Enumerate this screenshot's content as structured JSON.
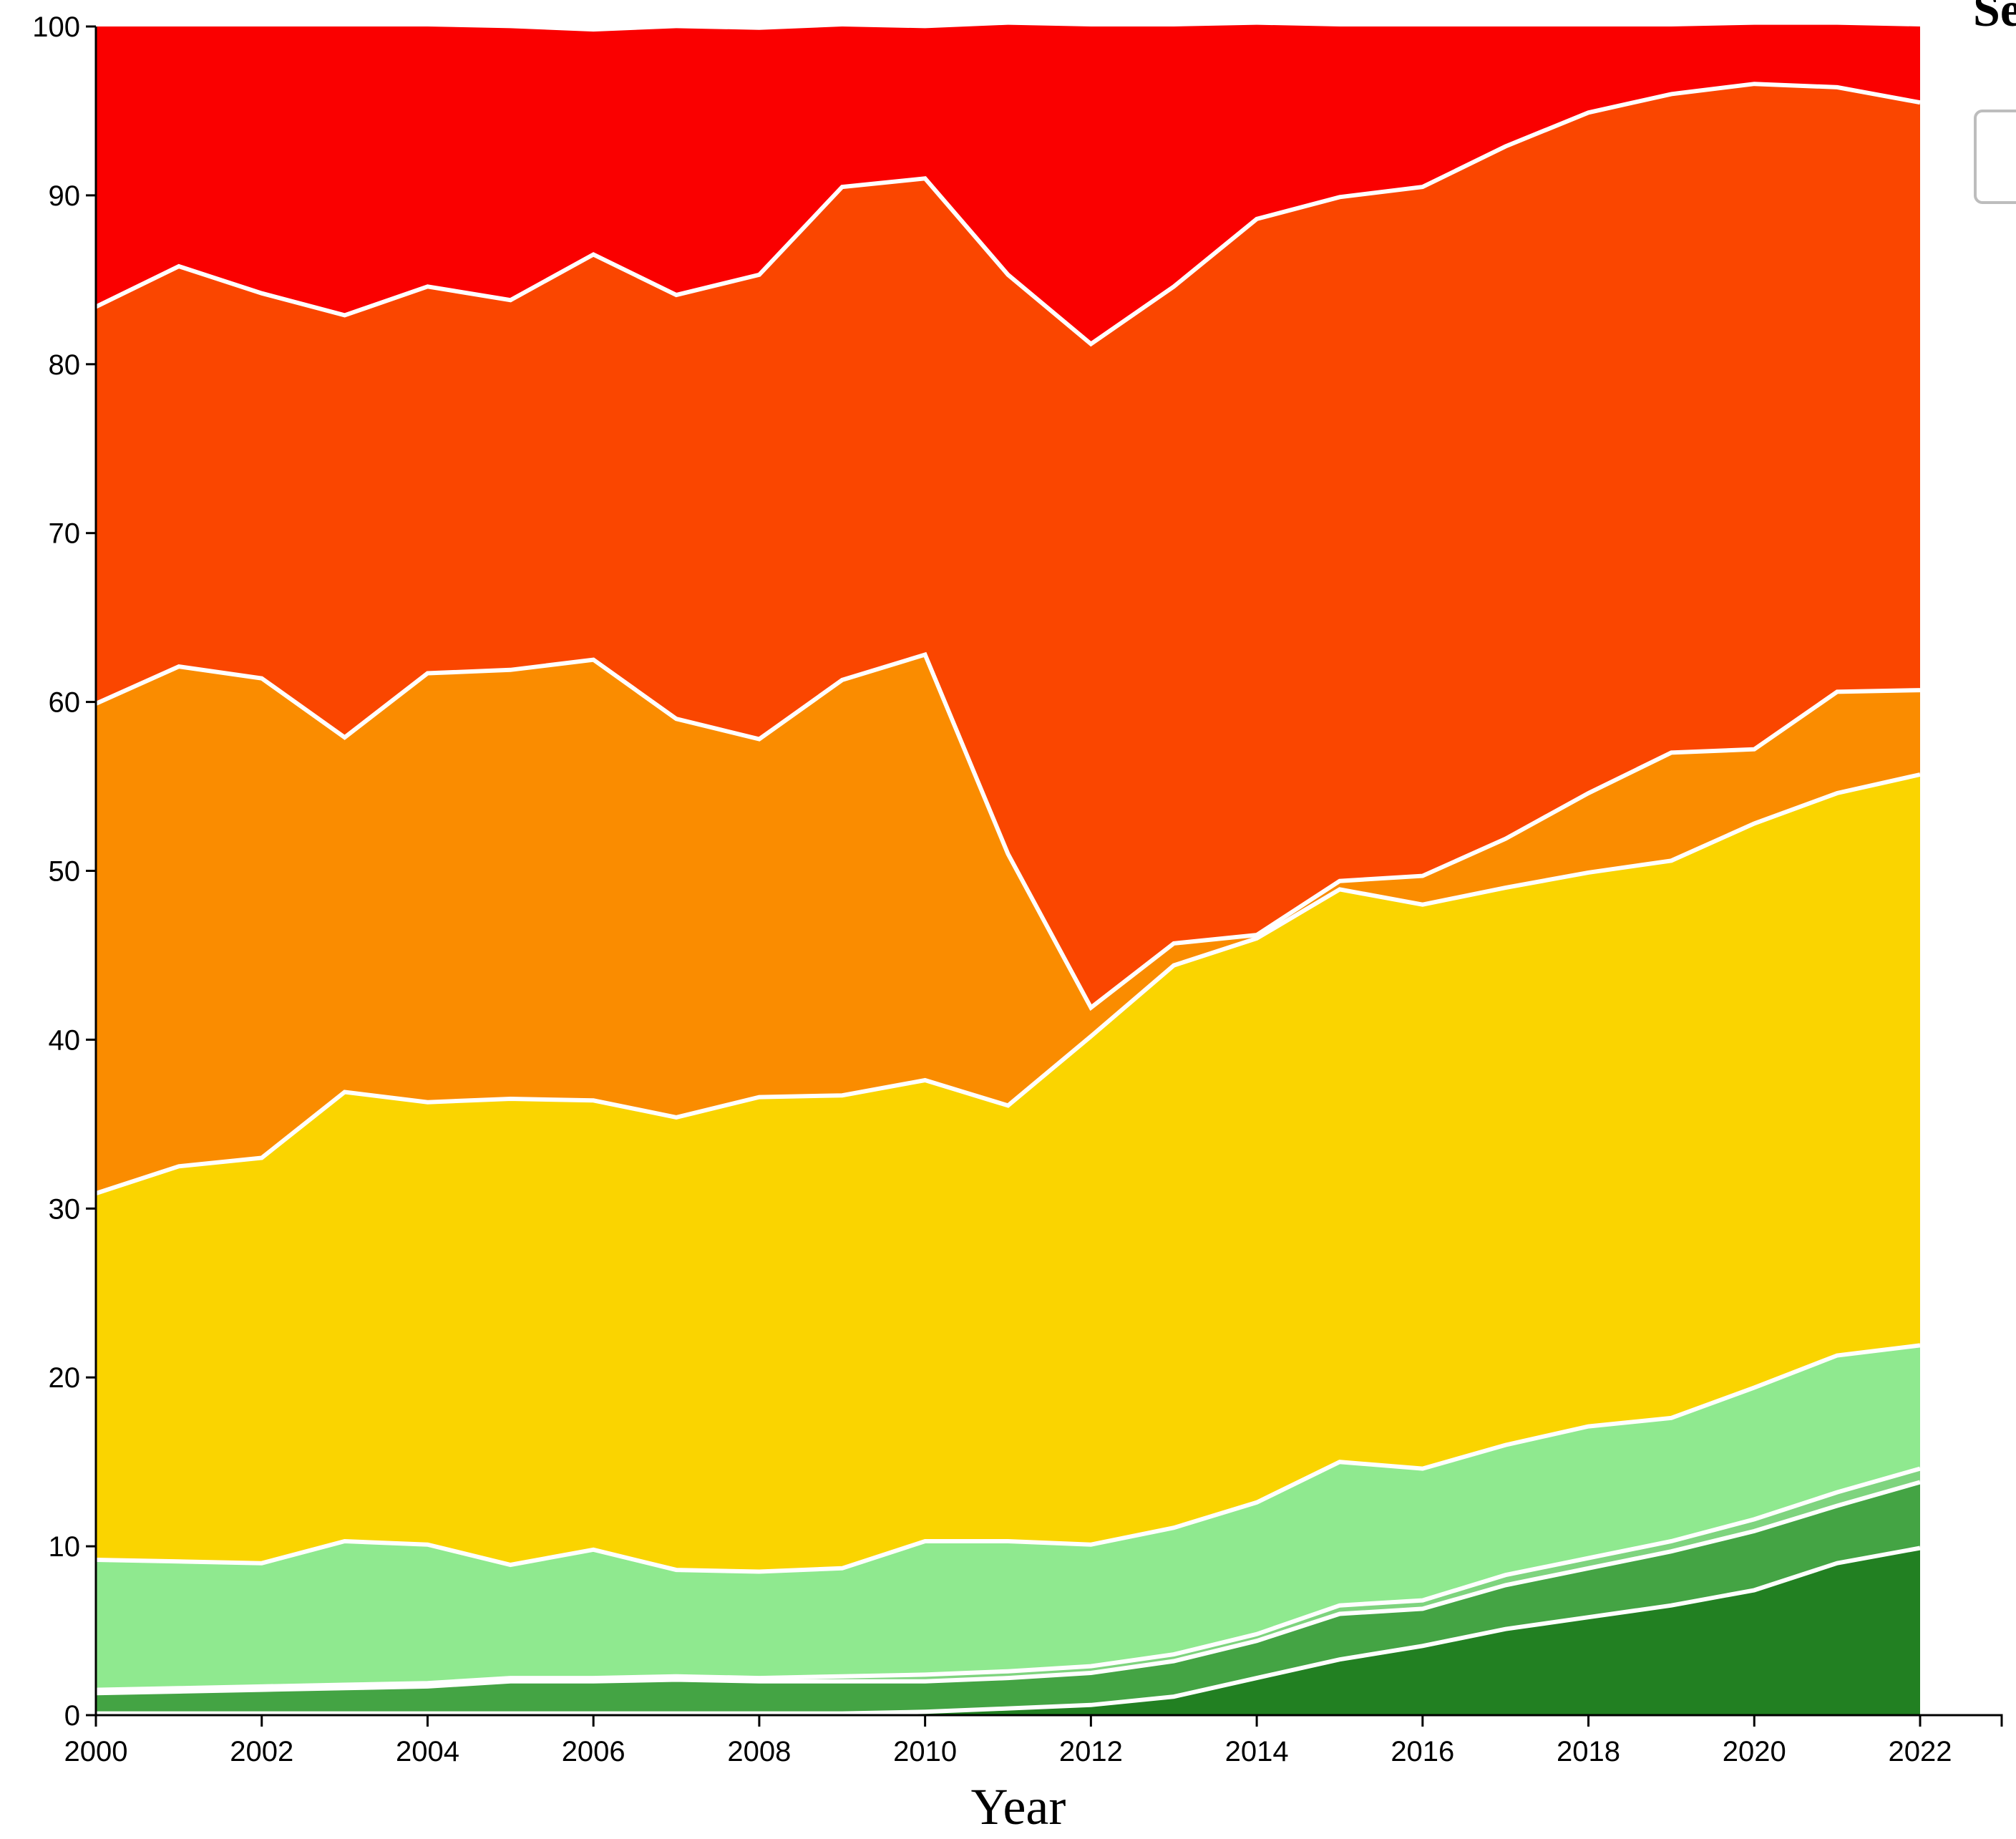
{
  "chart_data": {
    "type": "area",
    "stacked": true,
    "x": [
      2000,
      2001,
      2002,
      2003,
      2004,
      2005,
      2006,
      2007,
      2008,
      2009,
      2010,
      2011,
      2012,
      2013,
      2014,
      2015,
      2016,
      2017,
      2018,
      2019,
      2020,
      2021,
      2022
    ],
    "xlabel": "Year",
    "ylabel": "",
    "ylim": [
      0,
      100
    ],
    "xlim": [
      2000,
      2022
    ],
    "x_ticks": [
      "2000",
      "2002",
      "2004",
      "2006",
      "2008",
      "2010",
      "2012",
      "2014",
      "2016",
      "2018",
      "2020",
      "2022"
    ],
    "y_ticks": [
      "0",
      "10",
      "20",
      "30",
      "40",
      "50",
      "60",
      "70",
      "80",
      "90",
      "100"
    ],
    "legend_title": "Se",
    "legend_placement": "right",
    "grid": false,
    "series": [
      {
        "color": "#228022",
        "values": [
          0.1,
          0.1,
          0.1,
          0.1,
          0.1,
          0.1,
          0.1,
          0.1,
          0.1,
          0.1,
          0.2,
          0.4,
          0.6,
          1.1,
          2.2,
          3.3,
          4.1,
          5.1,
          5.8,
          6.5,
          7.4,
          9.0,
          9.9
        ]
      },
      {
        "color": "#44a444",
        "values": [
          1.2,
          1.3,
          1.4,
          1.5,
          1.6,
          1.9,
          1.9,
          2.0,
          1.9,
          1.9,
          1.8,
          1.8,
          1.9,
          2.1,
          2.2,
          2.7,
          2.2,
          2.6,
          2.9,
          3.2,
          3.5,
          3.4,
          3.9
        ]
      },
      {
        "color": "#7fd47f",
        "values": [
          0.2,
          0.2,
          0.2,
          0.2,
          0.2,
          0.2,
          0.2,
          0.2,
          0.2,
          0.3,
          0.4,
          0.4,
          0.4,
          0.4,
          0.4,
          0.5,
          0.5,
          0.6,
          0.6,
          0.6,
          0.7,
          0.8,
          0.8
        ]
      },
      {
        "color": "#8fe98f",
        "values": [
          7.7,
          7.5,
          7.3,
          8.5,
          8.2,
          6.7,
          7.6,
          6.3,
          6.3,
          6.4,
          7.9,
          7.7,
          7.2,
          7.5,
          7.8,
          8.5,
          7.8,
          7.7,
          7.8,
          7.3,
          7.8,
          8.1,
          7.3
        ]
      },
      {
        "color": "#fad400",
        "values": [
          21.7,
          23.4,
          24.0,
          26.6,
          26.2,
          27.6,
          26.6,
          26.8,
          28.1,
          28.0,
          27.3,
          25.8,
          30.1,
          33.3,
          33.4,
          33.9,
          33.4,
          33.0,
          32.8,
          33.0,
          33.4,
          33.3,
          33.8
        ]
      },
      {
        "color": "#fa8c00",
        "values": [
          29.0,
          29.6,
          28.4,
          21.0,
          25.4,
          25.4,
          26.1,
          23.6,
          21.2,
          24.6,
          25.2,
          14.9,
          1.7,
          1.3,
          0.2,
          0.5,
          1.7,
          2.9,
          4.7,
          6.4,
          4.4,
          6.0,
          5.0
        ]
      },
      {
        "color": "#fa4600",
        "values": [
          23.5,
          23.7,
          22.8,
          25.0,
          22.9,
          21.9,
          24.0,
          25.1,
          27.5,
          29.2,
          28.2,
          34.3,
          39.3,
          38.9,
          42.4,
          40.5,
          40.8,
          41.0,
          40.3,
          39.0,
          39.4,
          35.8,
          34.8
        ]
      },
      {
        "color": "#fa0000",
        "values": [
          16.6,
          14.2,
          15.8,
          17.1,
          15.4,
          16.1,
          13.2,
          15.8,
          14.5,
          9.5,
          8.9,
          14.8,
          18.8,
          15.4,
          11.5,
          10.1,
          9.5,
          7.1,
          5.1,
          4.0,
          3.5,
          3.7,
          4.5
        ]
      }
    ]
  }
}
